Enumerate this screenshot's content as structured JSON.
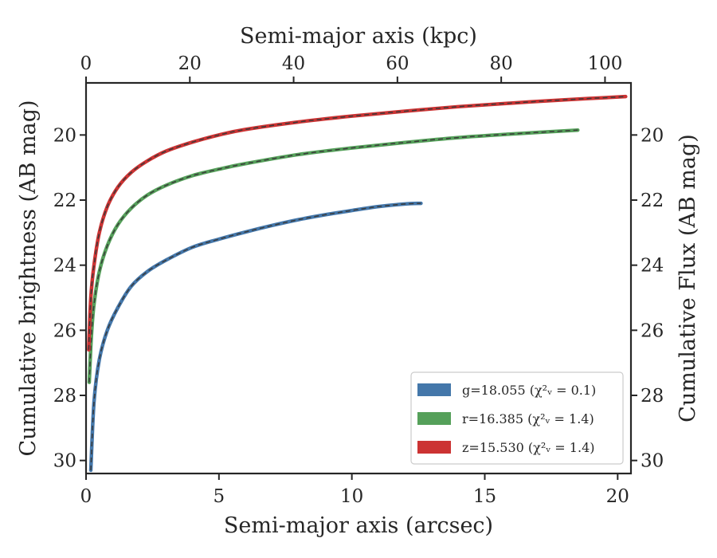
{
  "chart_data": {
    "type": "line",
    "xlabel": "Semi-major axis (arcsec)",
    "xlabel_top": "Semi-major axis (kpc)",
    "ylabel": "Cumulative brightness (AB mag)",
    "ylabel_right": "Cumulative Flux (AB mag)",
    "xlim": [
      0,
      20.5
    ],
    "xlim_top": [
      0,
      105
    ],
    "ylim": [
      30.4,
      18.4
    ],
    "y_inverted": true,
    "xticks": [
      "0",
      "5",
      "10",
      "15",
      "20"
    ],
    "xticks_top": [
      "0",
      "20",
      "40",
      "60",
      "80",
      "100"
    ],
    "yticks": [
      "20",
      "22",
      "24",
      "26",
      "28",
      "30"
    ],
    "legend_position": "lower right",
    "series": [
      {
        "name": "g=18.055",
        "chi_label": "χ²ᵥ = 0.1",
        "color": "#4477aa",
        "x": [
          0.18,
          0.3,
          0.5,
          0.8,
          1.2,
          1.7,
          2.3,
          3.0,
          4.0,
          5.0,
          6.0,
          7.0,
          8.0,
          9.0,
          10.0,
          11.0,
          12.0,
          12.6
        ],
        "y": [
          30.3,
          28.2,
          26.9,
          26.0,
          25.3,
          24.65,
          24.2,
          23.85,
          23.45,
          23.2,
          22.98,
          22.78,
          22.6,
          22.45,
          22.32,
          22.2,
          22.12,
          22.1
        ]
      },
      {
        "name": "r=16.385",
        "chi_label": "χ²ᵥ = 1.4",
        "color": "#55a05a",
        "x": [
          0.12,
          0.2,
          0.3,
          0.5,
          0.8,
          1.2,
          1.7,
          2.3,
          3.0,
          4.0,
          5.0,
          6.0,
          8.0,
          10.0,
          12.0,
          14.0,
          16.0,
          18.5
        ],
        "y": [
          27.6,
          26.2,
          25.2,
          24.2,
          23.4,
          22.75,
          22.25,
          21.85,
          21.55,
          21.25,
          21.05,
          20.88,
          20.6,
          20.4,
          20.23,
          20.08,
          19.97,
          19.85
        ]
      },
      {
        "name": "z=15.530",
        "chi_label": "χ²ᵥ = 1.4",
        "color": "#cc3333",
        "x": [
          0.1,
          0.18,
          0.3,
          0.5,
          0.8,
          1.2,
          1.7,
          2.3,
          3.0,
          4.0,
          5.0,
          6.0,
          8.0,
          10.0,
          12.0,
          14.0,
          16.0,
          18.0,
          20.3
        ],
        "y": [
          26.6,
          25.0,
          24.0,
          23.0,
          22.2,
          21.6,
          21.15,
          20.8,
          20.5,
          20.22,
          20.0,
          19.83,
          19.6,
          19.42,
          19.27,
          19.13,
          19.02,
          18.92,
          18.82
        ]
      }
    ]
  }
}
